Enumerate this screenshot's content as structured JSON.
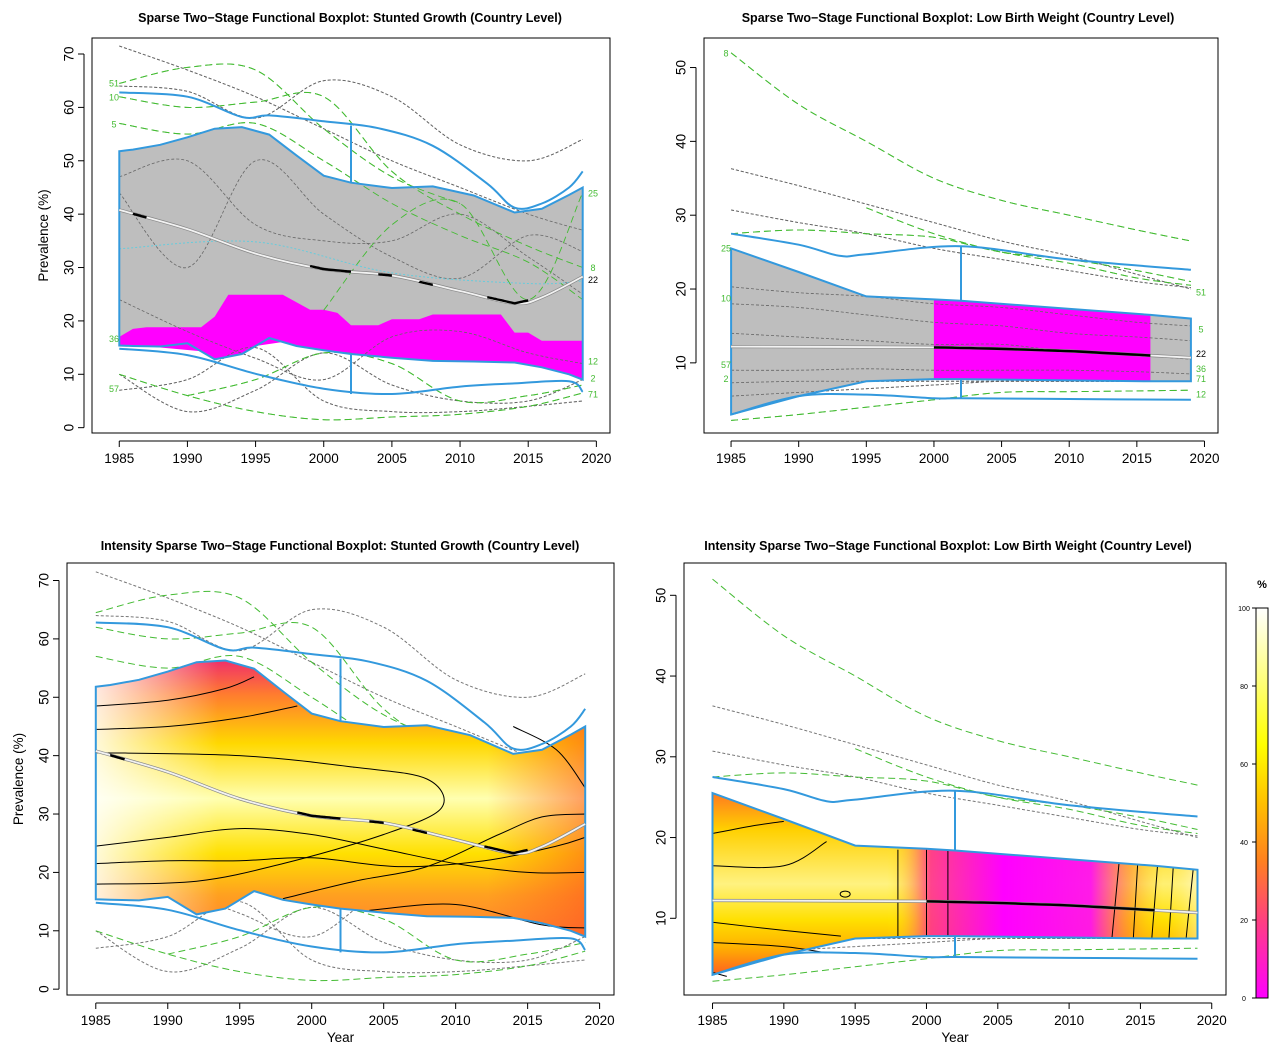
{
  "colors": {
    "box_blue": "#3399DD",
    "median_gray": "#BEBEBE",
    "magenta": "#FF00FF",
    "green": "#44BB33",
    "gray_dash": "#777777",
    "intensity_low": "#FF00FF",
    "intensity_mid": "#FF8800",
    "intensity_high": "#FFFF00",
    "intensity_top": "#FFFFFF"
  },
  "chart_data": [
    {
      "id": "stunted_growth",
      "type": "line",
      "title": "Sparse Two−Stage Functional Boxplot: Stunted Growth (Country Level)",
      "xlabel": "",
      "ylabel": "Prevalence (%)",
      "xlim": [
        1983,
        2021
      ],
      "ylim": [
        -1,
        73
      ],
      "xticks": [
        1985,
        1990,
        1995,
        2000,
        2005,
        2010,
        2015,
        2020
      ],
      "yticks": [
        0,
        10,
        20,
        30,
        40,
        50,
        60,
        70
      ],
      "box_x": [
        1985,
        1986,
        1988,
        1990,
        1992,
        1994,
        1996,
        1998,
        2000,
        2002,
        2005,
        2008,
        2011,
        2014,
        2016,
        2018,
        2019
      ],
      "box_upper": [
        51.8,
        52.1,
        53,
        54.4,
        56,
        56.3,
        54.9,
        51,
        47.2,
        45.9,
        44.9,
        45.2,
        43.5,
        40.3,
        41,
        43.6,
        45
      ],
      "box_lower": [
        15.4,
        15.3,
        15.2,
        15.8,
        12.8,
        13.8,
        16.8,
        15.3,
        14.5,
        13.8,
        13.1,
        12.5,
        12.4,
        12.2,
        11.3,
        10.0,
        9.0
      ],
      "max_x": [
        1985,
        1990,
        1994,
        1996,
        2000,
        2004,
        2008,
        2012,
        2014,
        2016,
        2018,
        2019
      ],
      "max_y": [
        62.8,
        62,
        58.2,
        58.5,
        57.4,
        56.1,
        52.8,
        45.7,
        41.2,
        42,
        45,
        48
      ],
      "min_x": [
        1985,
        1990,
        1995,
        2000,
        2005,
        2010,
        2014,
        2018,
        2019
      ],
      "min_y": [
        14.8,
        13.6,
        10.1,
        7.3,
        6.3,
        7.7,
        8.3,
        8.7,
        6.7
      ],
      "whisker_x": 2002,
      "whisker_to": [
        56.6,
        6.3
      ],
      "median_x": [
        1985,
        1990,
        1995,
        2000,
        2005,
        2010,
        2014,
        2016,
        2019
      ],
      "median_y": [
        40.8,
        37.2,
        32.6,
        29.7,
        28.5,
        25.6,
        23.3,
        24.4,
        28.3
      ],
      "median_bold_segments": [
        [
          1986,
          1987
        ],
        [
          1999,
          2002
        ],
        [
          2004,
          2005
        ],
        [
          2007,
          2008
        ],
        [
          2012,
          2015
        ]
      ],
      "magenta_x": [
        1985,
        1986,
        1987,
        1991,
        1992,
        1993,
        1994,
        1995,
        1997,
        1999,
        2000,
        2001,
        2002,
        2003,
        2004,
        2005,
        2007,
        2008,
        2009,
        2012,
        2013,
        2014,
        2015,
        2016,
        2017,
        2019
      ],
      "magenta_upper": [
        17,
        18.5,
        18.8,
        18.8,
        20.8,
        24.9,
        24.9,
        24.9,
        24.9,
        22.1,
        22.1,
        21.5,
        19.2,
        19.2,
        19.2,
        20.3,
        20.3,
        21.2,
        21.2,
        21.2,
        21.2,
        17.8,
        17.8,
        16.3,
        16.3,
        16.3
      ],
      "light_line_x": [
        1985,
        1995,
        2005,
        2015,
        2019
      ],
      "light_line_y": [
        33.5,
        34.8,
        29,
        27,
        27.5
      ],
      "dashed_green": [
        {
          "x": [
            1985,
            1990,
            1995,
            2000,
            2005,
            2010
          ],
          "y": [
            64.5,
            67.5,
            67,
            56,
            47,
            42
          ]
        },
        {
          "x": [
            1985,
            1990,
            1995,
            2000,
            2005,
            2010,
            2015,
            2019
          ],
          "y": [
            62,
            60,
            61,
            62,
            48,
            40,
            34,
            30
          ]
        },
        {
          "x": [
            1985,
            1990,
            1995,
            2000,
            2005,
            2010,
            2015,
            2019
          ],
          "y": [
            57,
            55,
            57,
            50,
            42,
            36,
            31,
            24
          ]
        },
        {
          "x": [
            1990,
            1995,
            2000,
            2005,
            2010,
            2015,
            2019
          ],
          "y": [
            6,
            9,
            14,
            12,
            5,
            6,
            8
          ]
        },
        {
          "x": [
            1985,
            1990,
            1995,
            2000,
            2005,
            2010,
            2015,
            2019
          ],
          "y": [
            10,
            6,
            3,
            1.5,
            2,
            2.5,
            4,
            6.5
          ]
        },
        {
          "x": [
            2000,
            2005,
            2010,
            2015,
            2019
          ],
          "y": [
            22,
            38,
            42,
            24,
            44
          ]
        }
      ],
      "dashed_gray": [
        {
          "x": [
            1985,
            1990,
            1995,
            2000,
            2005,
            2010,
            2015,
            2019
          ],
          "y": [
            71.5,
            67,
            62,
            56,
            50,
            45,
            40,
            37
          ]
        },
        {
          "x": [
            1985,
            1990,
            1995,
            2000,
            2005,
            2010,
            2015,
            2019
          ],
          "y": [
            64,
            63,
            58,
            65,
            62,
            53,
            50,
            54
          ]
        },
        {
          "x": [
            1985,
            1990,
            1995,
            2000,
            2005,
            2010,
            2015,
            2019
          ],
          "y": [
            47,
            50,
            38,
            35,
            35,
            40,
            32,
            25
          ]
        },
        {
          "x": [
            1985,
            1990,
            1995,
            2000,
            2005,
            2010,
            2015,
            2019
          ],
          "y": [
            44,
            30,
            50,
            40,
            32,
            28,
            36,
            33
          ]
        },
        {
          "x": [
            1985,
            1990,
            1995,
            2000,
            2005,
            2010,
            2015,
            2019
          ],
          "y": [
            24,
            18,
            13,
            9,
            17,
            18,
            14,
            12
          ]
        },
        {
          "x": [
            1985,
            1990,
            1995,
            2000,
            2005,
            2010,
            2015,
            2019
          ],
          "y": [
            10,
            3,
            7,
            14,
            8,
            5,
            5,
            9
          ]
        },
        {
          "x": [
            1985,
            1990,
            1995,
            2000,
            2005,
            2010,
            2015,
            2019
          ],
          "y": [
            7,
            9,
            15,
            5,
            3,
            3,
            4,
            5
          ]
        }
      ],
      "left_labels": [
        {
          "y": 64.5,
          "t": "51"
        },
        {
          "y": 61.9,
          "t": "10"
        },
        {
          "y": 56.8,
          "t": "5"
        },
        {
          "y": 16.6,
          "t": "36"
        },
        {
          "y": 7.2,
          "t": "57"
        }
      ],
      "right_labels": [
        {
          "y": 43.9,
          "t": "25"
        },
        {
          "y": 29.9,
          "t": "8"
        },
        {
          "y": 27.7,
          "t": "22"
        },
        {
          "y": 12.4,
          "t": "12"
        },
        {
          "y": 9.2,
          "t": "2"
        },
        {
          "y": 6.2,
          "t": "71"
        }
      ],
      "mode": "sparse"
    },
    {
      "id": "low_birth_weight",
      "type": "line",
      "title": "Sparse Two−Stage Functional Boxplot: Low Birth Weight (Country Level)",
      "xlabel": "",
      "ylabel": "",
      "xlim": [
        1983,
        2021
      ],
      "ylim": [
        0.5,
        54
      ],
      "xticks": [
        1985,
        1990,
        1995,
        2000,
        2005,
        2010,
        2015,
        2020
      ],
      "yticks": [
        10,
        20,
        30,
        40,
        50
      ],
      "box_x": [
        1985,
        1990,
        1995,
        2000,
        2002,
        2016,
        2019
      ],
      "box_upper": [
        25.5,
        22.3,
        19,
        18.6,
        18.4,
        16.5,
        16
      ],
      "box_lower": [
        3,
        5.5,
        7.5,
        7.8,
        7.8,
        7.5,
        7.5
      ],
      "max_x": [
        1985,
        1990,
        1993,
        1995,
        2002,
        2010,
        2019
      ],
      "max_y": [
        27.5,
        26,
        24.5,
        24.7,
        25.8,
        24,
        22.6
      ],
      "min_x": [
        1985,
        1990,
        1995,
        2000,
        2002,
        2010,
        2019
      ],
      "min_y": [
        3,
        5.5,
        5.7,
        5.2,
        5.2,
        5.1,
        5
      ],
      "whisker_x": 2002,
      "whisker_to": [
        25.8,
        5.2
      ],
      "median_x": [
        1985,
        2000,
        2005,
        2010,
        2016,
        2019
      ],
      "median_y": [
        12.2,
        12.1,
        11.9,
        11.6,
        11,
        10.7
      ],
      "median_bold_segments": [
        [
          2000,
          2016
        ]
      ],
      "magenta_x": [
        2000,
        2016
      ],
      "magenta_upper": [
        18.6,
        16.5
      ],
      "magenta_lower": [
        7.8,
        7.5
      ],
      "dashed_green": [
        {
          "x": [
            1985,
            1990,
            1995,
            2000,
            2005,
            2010,
            2015,
            2019
          ],
          "y": [
            52,
            45,
            40,
            35,
            32,
            30,
            28,
            26.5
          ]
        },
        {
          "x": [
            1985,
            1990,
            1995,
            2000,
            2005,
            2010,
            2015,
            2019
          ],
          "y": [
            27.5,
            28,
            27.5,
            27,
            25,
            24,
            22.5,
            21
          ]
        },
        {
          "x": [
            1995,
            2000,
            2005,
            2010,
            2015,
            2019
          ],
          "y": [
            31,
            27.5,
            25,
            23.5,
            21.5,
            20.5
          ]
        },
        {
          "x": [
            1985,
            1990,
            1995,
            2000,
            2005,
            2010,
            2015,
            2019
          ],
          "y": [
            2.2,
            3,
            4,
            5,
            6,
            6.1,
            6.2,
            6.3
          ]
        }
      ],
      "dashed_gray": [
        {
          "x": [
            1985,
            1990,
            1995,
            2000,
            2005,
            2010,
            2015,
            2019
          ],
          "y": [
            36.3,
            34,
            31.5,
            29,
            26.5,
            24.5,
            22,
            20
          ]
        },
        {
          "x": [
            1985,
            1990,
            1995,
            2000,
            2005,
            2010,
            2015,
            2019
          ],
          "y": [
            30.7,
            29,
            27.5,
            25.5,
            24,
            22.5,
            21,
            20.2
          ]
        },
        {
          "x": [
            1985,
            1990,
            1995,
            2000,
            2005,
            2010,
            2015,
            2019
          ],
          "y": [
            20.3,
            19.5,
            19,
            18,
            17.5,
            16.5,
            15.5,
            15
          ]
        },
        {
          "x": [
            1985,
            1990,
            1995,
            2000,
            2005,
            2010,
            2015,
            2019
          ],
          "y": [
            18,
            17.5,
            16.5,
            15.5,
            15,
            14,
            13.5,
            13
          ]
        },
        {
          "x": [
            1985,
            1990,
            1995,
            2000,
            2005,
            2010,
            2015,
            2019
          ],
          "y": [
            14,
            13.5,
            13,
            12.5,
            12.5,
            11.5,
            11,
            10.5
          ]
        },
        {
          "x": [
            1985,
            1990,
            1995,
            2000,
            2005,
            2010,
            2015,
            2019
          ],
          "y": [
            9,
            9,
            9.2,
            9,
            9,
            9,
            8.8,
            8.5
          ]
        },
        {
          "x": [
            1985,
            1990,
            1995,
            2000,
            2005,
            2010,
            2015,
            2019
          ],
          "y": [
            7.3,
            7.5,
            7.5,
            7.5,
            7.5,
            7.5,
            7.5,
            7.5
          ]
        },
        {
          "x": [
            1985,
            1990,
            1995,
            2000,
            2005,
            2010,
            2015,
            2019
          ],
          "y": [
            5.5,
            6,
            6.5,
            7,
            7.5,
            7.5,
            7.5,
            7.5
          ]
        }
      ],
      "left_labels": [
        {
          "y": 51.9,
          "t": "8"
        },
        {
          "y": 25.5,
          "t": "25"
        },
        {
          "y": 18.7,
          "t": "10"
        },
        {
          "y": 9.7,
          "t": "57"
        },
        {
          "y": 7.8,
          "t": "2"
        }
      ],
      "right_labels": [
        {
          "y": 19.5,
          "t": "51"
        },
        {
          "y": 14.5,
          "t": "5"
        },
        {
          "y": 11.2,
          "t": "22"
        },
        {
          "y": 9.2,
          "t": "36"
        },
        {
          "y": 7.8,
          "t": "71"
        },
        {
          "y": 5.7,
          "t": "12"
        }
      ],
      "mode": "sparse"
    },
    {
      "id": "stunted_growth_intensity",
      "type": "line",
      "title": "Intensity Sparse Two−Stage Functional Boxplot: Stunted Growth (Country Level)",
      "xlabel": "Year",
      "ylabel": "Prevalence (%)",
      "xlim": [
        1983,
        2021
      ],
      "ylim": [
        -1,
        73
      ],
      "xticks": [
        1985,
        1990,
        1995,
        2000,
        2005,
        2010,
        2015,
        2020
      ],
      "yticks": [
        0,
        10,
        20,
        30,
        40,
        50,
        60,
        70
      ],
      "mode": "intensity",
      "base": "stunted_growth"
    },
    {
      "id": "low_birth_weight_intensity",
      "type": "line",
      "title": "Intensity Sparse Two−Stage Functional Boxplot: Low Birth Weight (Country Level)",
      "xlabel": "Year",
      "ylabel": "",
      "xlim": [
        1983,
        2021
      ],
      "ylim": [
        0.5,
        54
      ],
      "xticks": [
        1985,
        1990,
        1995,
        2000,
        2005,
        2010,
        2015,
        2020
      ],
      "yticks": [
        10,
        20,
        30,
        40,
        50
      ],
      "mode": "intensity",
      "base": "low_birth_weight"
    }
  ],
  "colorbar": {
    "title": "%",
    "ticks": [
      0,
      20,
      40,
      60,
      80,
      100
    ]
  }
}
